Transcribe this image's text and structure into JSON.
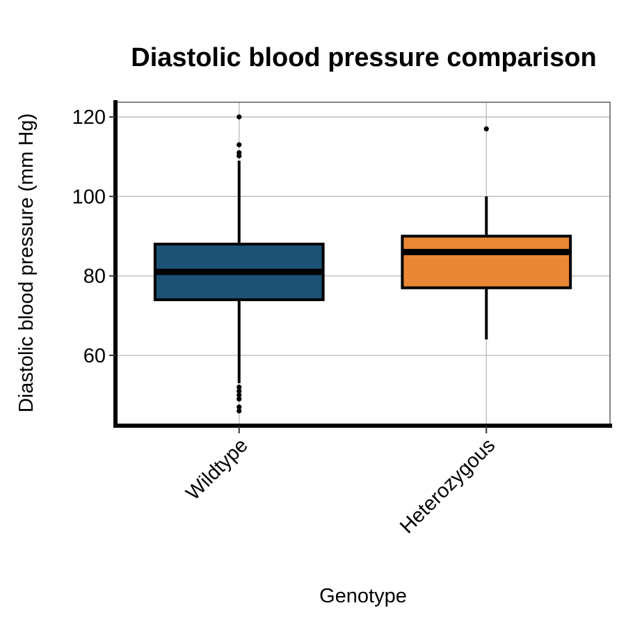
{
  "chart_data": {
    "type": "box",
    "title": "Diastolic blood pressure comparison",
    "xlabel": "Genotype",
    "ylabel": "Diastolic blood pressure (mm Hg)",
    "ylim": [
      42.3,
      123.7
    ],
    "yticks": [
      60,
      80,
      100,
      120
    ],
    "grid": true,
    "legend": "none",
    "categories": [
      "Wildtype",
      "Heterozygous"
    ],
    "boxes": [
      {
        "category": "Wildtype",
        "color": "#1b5276",
        "whisker_low": 53,
        "q1": 74,
        "median": 81,
        "q3": 88,
        "whisker_high": 109,
        "outliers": [
          120,
          113,
          111,
          110.2,
          52,
          51,
          50,
          49,
          47,
          46
        ]
      },
      {
        "category": "Heterozygous",
        "color": "#eb8734",
        "whisker_low": 64,
        "q1": 77,
        "median": 86,
        "q3": 90,
        "whisker_high": 100,
        "outliers": [
          117
        ]
      }
    ]
  }
}
